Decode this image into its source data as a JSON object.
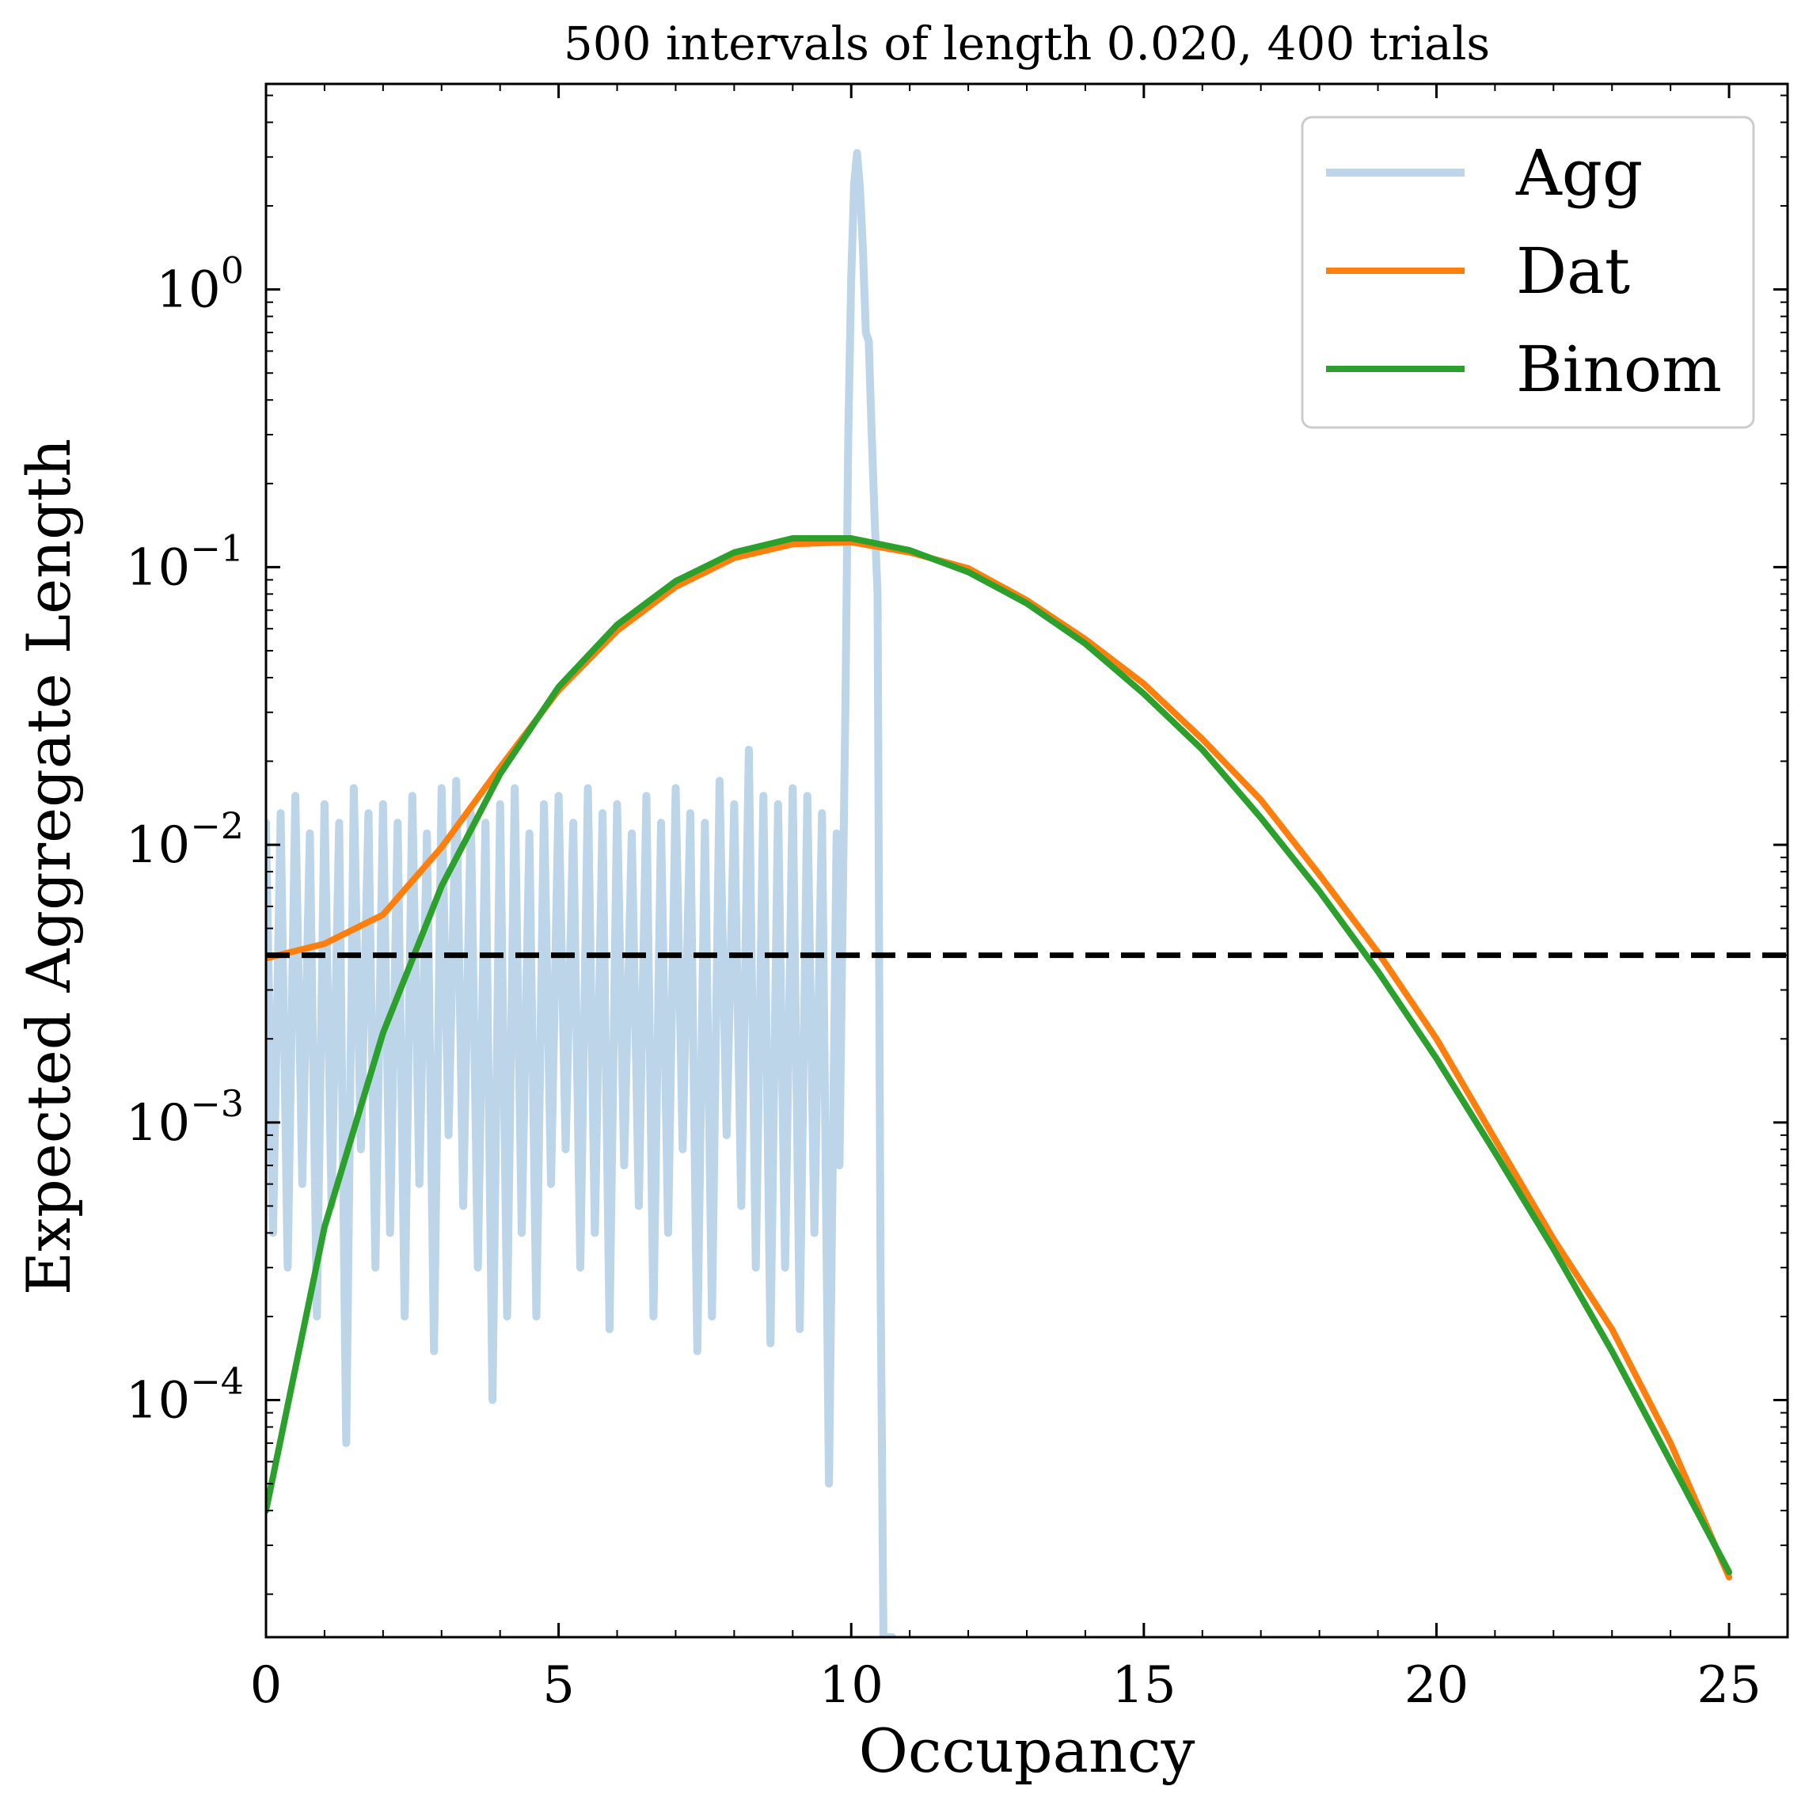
{
  "chart_data": {
    "type": "line",
    "title": "500 intervals of length 0.020, 400 trials",
    "xlabel": "Occupancy",
    "ylabel": "Expected Aggregate Length",
    "xlim": [
      0,
      26
    ],
    "ylim": [
      1.4e-05,
      5.5
    ],
    "yscale": "log",
    "grid": false,
    "legend_position": "top-right",
    "xticks": [
      0,
      5,
      10,
      15,
      20,
      25
    ],
    "xtick_labels": [
      "0",
      "5",
      "10",
      "15",
      "20",
      "25"
    ],
    "yticks": [
      0.0001,
      0.001,
      0.01,
      0.1,
      1
    ],
    "ytick_labels": [
      {
        "base": "10",
        "exp": "−4"
      },
      {
        "base": "10",
        "exp": "−3"
      },
      {
        "base": "10",
        "exp": "−2"
      },
      {
        "base": "10",
        "exp": "−1"
      },
      {
        "base": "10",
        "exp": "0"
      }
    ],
    "series": [
      {
        "name": "Agg",
        "color": "#bcd5e8",
        "style": "solid",
        "x": [
          0,
          0.12,
          0.25,
          0.37,
          0.5,
          0.62,
          0.75,
          0.87,
          1.0,
          1.12,
          1.25,
          1.37,
          1.5,
          1.62,
          1.75,
          1.87,
          2.0,
          2.12,
          2.25,
          2.37,
          2.5,
          2.62,
          2.75,
          2.87,
          3.0,
          3.12,
          3.25,
          3.37,
          3.5,
          3.62,
          3.75,
          3.87,
          4.0,
          4.12,
          4.25,
          4.37,
          4.5,
          4.62,
          4.75,
          4.87,
          5.0,
          5.12,
          5.25,
          5.37,
          5.5,
          5.62,
          5.75,
          5.87,
          6.0,
          6.12,
          6.25,
          6.37,
          6.5,
          6.62,
          6.75,
          6.87,
          7.0,
          7.12,
          7.25,
          7.37,
          7.5,
          7.62,
          7.75,
          7.87,
          8.0,
          8.12,
          8.25,
          8.37,
          8.5,
          8.62,
          8.75,
          8.87,
          9.0,
          9.12,
          9.25,
          9.37,
          9.5,
          9.62,
          9.75,
          9.8,
          9.85,
          9.9,
          9.95,
          10.0,
          10.05,
          10.1,
          10.15,
          10.2,
          10.25,
          10.3,
          10.35,
          10.4,
          10.45,
          10.5,
          10.55,
          10.6,
          10.65,
          10.7
        ],
        "y": [
          0.012,
          0.0004,
          0.013,
          0.0003,
          0.015,
          0.0006,
          0.011,
          0.0002,
          0.014,
          0.0005,
          0.012,
          7e-05,
          0.016,
          0.0008,
          0.013,
          0.0003,
          0.014,
          0.0004,
          0.012,
          0.0002,
          0.015,
          0.0006,
          0.011,
          0.00015,
          0.016,
          0.0009,
          0.017,
          0.0005,
          0.013,
          0.0003,
          0.012,
          0.0001,
          0.014,
          0.0002,
          0.016,
          0.0004,
          0.011,
          0.0002,
          0.014,
          0.0006,
          0.015,
          0.0008,
          0.012,
          0.0003,
          0.016,
          0.0004,
          0.013,
          0.00018,
          0.014,
          0.0007,
          0.011,
          0.0005,
          0.015,
          0.0002,
          0.012,
          0.0004,
          0.016,
          0.0008,
          0.013,
          0.00015,
          0.012,
          0.0002,
          0.017,
          0.0009,
          0.014,
          0.0005,
          0.022,
          0.0003,
          0.015,
          0.00016,
          0.014,
          0.0003,
          0.016,
          0.00018,
          0.015,
          0.0004,
          0.013,
          5e-05,
          0.011,
          0.0007,
          0.005,
          0.03,
          0.3,
          1.1,
          2.4,
          3.1,
          2.3,
          1.4,
          0.7,
          0.65,
          0.3,
          0.15,
          0.08,
          0.0003,
          1.4e-05,
          1.4e-05,
          1.4e-05,
          1.4e-05
        ]
      },
      {
        "name": "Dat",
        "color": "#ff7f0e",
        "style": "solid",
        "x": [
          0,
          1,
          2,
          3,
          4,
          5,
          6,
          7,
          8,
          9,
          10,
          11,
          12,
          13,
          14,
          15,
          16,
          17,
          18,
          19,
          20,
          21,
          22,
          23,
          24,
          25
        ],
        "y": [
          0.0039,
          0.0044,
          0.0056,
          0.0098,
          0.019,
          0.036,
          0.059,
          0.085,
          0.108,
          0.121,
          0.123,
          0.113,
          0.099,
          0.076,
          0.055,
          0.038,
          0.024,
          0.0145,
          0.0078,
          0.0041,
          0.002,
          0.00087,
          0.00038,
          0.00018,
          7e-05,
          2.3e-05
        ]
      },
      {
        "name": "Binom",
        "color": "#2ca02c",
        "style": "solid",
        "x": [
          0,
          1,
          2,
          3,
          4,
          5,
          6,
          7,
          8,
          9,
          10,
          11,
          12,
          13,
          14,
          15,
          16,
          17,
          18,
          19,
          20,
          21,
          22,
          23,
          24,
          25
        ],
        "y": [
          4e-05,
          0.00042,
          0.0021,
          0.0071,
          0.018,
          0.037,
          0.062,
          0.089,
          0.113,
          0.127,
          0.127,
          0.115,
          0.096,
          0.074,
          0.053,
          0.035,
          0.022,
          0.0125,
          0.0068,
          0.0035,
          0.0017,
          0.00078,
          0.00035,
          0.00015,
          6e-05,
          2.4e-05
        ]
      }
    ],
    "reference_line": {
      "y": 0.004,
      "color": "#000000",
      "style": "dashed"
    }
  }
}
